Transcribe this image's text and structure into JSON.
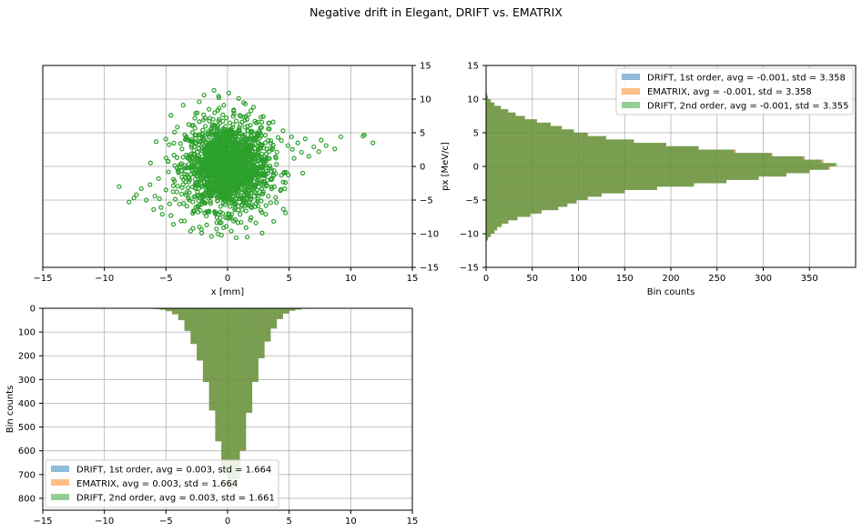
{
  "figure": {
    "title": "Negative drift in Elegant, DRIFT vs. EMATRIX"
  },
  "colors": {
    "series1": "#1f77b4",
    "series2": "#ff7f0e",
    "series3": "#2ca02c",
    "grid": "#b0b0b0"
  },
  "chart_data": [
    {
      "type": "scatter",
      "xlabel": "x [mm]",
      "ylabel": "px [MeV/c]",
      "xlim": [
        -15,
        15
      ],
      "ylim": [
        -15,
        15
      ],
      "xticks": [
        -15,
        -10,
        -5,
        0,
        5,
        10,
        15
      ],
      "yticks": [
        -15,
        -10,
        -5,
        0,
        5,
        10,
        15
      ],
      "yaxis_side": "right",
      "grid": true,
      "marker": "open circle",
      "points": [
        [
          -8.8,
          -3
        ],
        [
          -8.0,
          -5.3
        ],
        [
          -7.4,
          -4.2
        ],
        [
          -7.0,
          -3.3
        ],
        [
          -6.6,
          -5.0
        ],
        [
          -6.3,
          -2.7
        ],
        [
          -5.9,
          -4.4
        ],
        [
          -5.6,
          -1.8
        ],
        [
          -5.4,
          -6.1
        ],
        [
          -5.0,
          -3.5
        ],
        [
          -4.8,
          -0.8
        ],
        [
          -4.6,
          -7.3
        ],
        [
          -4.3,
          -2.2
        ],
        [
          -4.1,
          1.3
        ],
        [
          -3.9,
          -5.6
        ],
        [
          -3.7,
          2.6
        ],
        [
          -3.5,
          -8.1
        ],
        [
          -3.3,
          4.2
        ],
        [
          -3.1,
          -3.9
        ],
        [
          -2.9,
          6.1
        ],
        [
          -2.8,
          -9.2
        ],
        [
          -2.6,
          7.9
        ],
        [
          -2.4,
          -6.8
        ],
        [
          -2.3,
          9.6
        ],
        [
          -2.1,
          -9.9
        ],
        [
          -1.9,
          10.6
        ],
        [
          -1.7,
          -8.7
        ],
        [
          -1.5,
          8.5
        ],
        [
          -1.3,
          -10.4
        ],
        [
          -1.1,
          11.3
        ],
        [
          -0.9,
          -9.3
        ],
        [
          -0.7,
          10.2
        ],
        [
          -0.5,
          -10.2
        ],
        [
          -0.3,
          9.1
        ],
        [
          -0.1,
          -8.9
        ],
        [
          0.1,
          10.9
        ],
        [
          0.3,
          -9.6
        ],
        [
          0.5,
          8.4
        ],
        [
          0.7,
          -10.6
        ],
        [
          0.9,
          10.1
        ],
        [
          1.1,
          -8.3
        ],
        [
          1.3,
          9.5
        ],
        [
          1.5,
          -9.1
        ],
        [
          1.7,
          7.7
        ],
        [
          1.9,
          -7.6
        ],
        [
          2.1,
          8.8
        ],
        [
          2.3,
          -8.4
        ],
        [
          2.5,
          6.6
        ],
        [
          2.7,
          -6.5
        ],
        [
          2.9,
          7.4
        ],
        [
          3.1,
          -7.1
        ],
        [
          3.3,
          5.6
        ],
        [
          3.5,
          -5.4
        ],
        [
          3.7,
          6.6
        ],
        [
          3.9,
          -4.6
        ],
        [
          4.1,
          4.3
        ],
        [
          4.3,
          -3.6
        ],
        [
          4.5,
          5.3
        ],
        [
          4.7,
          -2.4
        ],
        [
          4.9,
          3.1
        ],
        [
          5.2,
          4.4
        ],
        [
          5.4,
          1.2
        ],
        [
          5.7,
          3.5
        ],
        [
          6.0,
          2.1
        ],
        [
          6.3,
          4.1
        ],
        [
          6.6,
          1.5
        ],
        [
          7.0,
          2.9
        ],
        [
          7.4,
          2.2
        ],
        [
          8.0,
          3.1
        ],
        [
          8.7,
          2.6
        ],
        [
          9.2,
          4.4
        ],
        [
          11.0,
          4.5
        ],
        [
          11.1,
          4.7
        ],
        [
          11.8,
          3.5
        ],
        [
          -7.6,
          -4.7
        ],
        [
          -6.0,
          -6.4
        ],
        [
          -5.3,
          -7.1
        ],
        [
          -4.4,
          -8.6
        ],
        [
          -3.0,
          -9.6
        ],
        [
          -3.6,
          9.1
        ],
        [
          -4.6,
          7.6
        ],
        [
          2.8,
          -9.9
        ],
        [
          1.6,
          -10.5
        ],
        [
          6.1,
          -1.0
        ],
        [
          7.6,
          3.9
        ],
        [
          -2.2,
          -0.2
        ],
        [
          -1.8,
          1.9
        ],
        [
          -1.4,
          -2.6
        ],
        [
          -1.0,
          3.4
        ],
        [
          -0.6,
          -1.2
        ],
        [
          -0.2,
          0.6
        ],
        [
          0.2,
          -3.3
        ],
        [
          0.6,
          2.7
        ],
        [
          1.0,
          -0.8
        ],
        [
          1.4,
          1.5
        ],
        [
          1.8,
          -2.1
        ],
        [
          2.2,
          3.9
        ],
        [
          2.6,
          -1.5
        ],
        [
          3.0,
          0.9
        ],
        [
          3.4,
          2.2
        ],
        [
          -2.4,
          -4.4
        ],
        [
          -1.6,
          4.9
        ],
        [
          -0.8,
          -5.1
        ],
        [
          0.4,
          5.8
        ],
        [
          1.2,
          -4.9
        ],
        [
          2.0,
          5.2
        ],
        [
          -3.2,
          -1.6
        ],
        [
          3.2,
          -2.8
        ],
        [
          -2.7,
          2.9
        ],
        [
          2.4,
          0.3
        ]
      ],
      "scatter_spread": {
        "x_std": 1.664,
        "px_std": 3.358,
        "x_range": [
          -8.8,
          11.8
        ],
        "px_range": [
          -10.6,
          11.3
        ]
      }
    },
    {
      "type": "bar",
      "orientation": "horizontal",
      "xlabel": "Bin counts",
      "ylabel": "",
      "xlim": [
        0,
        400
      ],
      "ylim": [
        -15,
        15
      ],
      "xticks": [
        0,
        50,
        100,
        150,
        200,
        250,
        300,
        350
      ],
      "yticks": [
        -15,
        -10,
        -5,
        0,
        5,
        10,
        15
      ],
      "grid": true,
      "legend_position": "top-right",
      "bin_edges": [
        -11.0,
        -10.5,
        -10.0,
        -9.5,
        -9.0,
        -8.5,
        -8.0,
        -7.5,
        -7.0,
        -6.5,
        -6.0,
        -5.5,
        -5.0,
        -4.5,
        -4.0,
        -3.5,
        -3.0,
        -2.5,
        -2.0,
        -1.5,
        -1.0,
        -0.5,
        0.0,
        0.5,
        1.0,
        1.5,
        2.0,
        2.5,
        3.0,
        3.5,
        4.0,
        4.5,
        5.0,
        5.5,
        6.0,
        6.5,
        7.0,
        7.5,
        8.0,
        8.5,
        9.0,
        9.5,
        10.0,
        10.5,
        11.0
      ],
      "series": [
        {
          "name": "DRIFT, 1st order, avg = -0.001, std = 3.358",
          "values": [
            2,
            5,
            9,
            12,
            17,
            24,
            34,
            48,
            60,
            78,
            88,
            98,
            110,
            125,
            150,
            185,
            225,
            260,
            295,
            325,
            350,
            372,
            378,
            365,
            345,
            310,
            270,
            230,
            195,
            160,
            130,
            110,
            95,
            82,
            70,
            55,
            42,
            32,
            24,
            16,
            9,
            5,
            2,
            1
          ]
        },
        {
          "name": "EMATRIX, avg = -0.001, std = 3.358",
          "values": [
            2,
            5,
            9,
            12,
            17,
            24,
            34,
            48,
            60,
            78,
            88,
            98,
            110,
            125,
            150,
            185,
            225,
            260,
            295,
            325,
            350,
            372,
            378,
            365,
            345,
            310,
            270,
            230,
            195,
            160,
            130,
            110,
            95,
            82,
            70,
            55,
            42,
            32,
            24,
            16,
            9,
            5,
            2,
            1
          ]
        },
        {
          "name": "DRIFT, 2nd order, avg = -0.001, std = 3.355",
          "values": [
            2,
            5,
            9,
            12,
            17,
            24,
            34,
            48,
            60,
            78,
            88,
            98,
            110,
            125,
            150,
            185,
            225,
            260,
            295,
            325,
            350,
            370,
            380,
            362,
            343,
            308,
            268,
            230,
            195,
            160,
            130,
            110,
            95,
            82,
            70,
            55,
            42,
            32,
            24,
            16,
            9,
            5,
            2,
            1
          ]
        }
      ]
    },
    {
      "type": "bar",
      "orientation": "vertical-inverted",
      "xlabel": "",
      "ylabel": "Bin counts",
      "xlim": [
        -15,
        15
      ],
      "ylim": [
        850,
        0
      ],
      "xticks": [
        -15,
        -10,
        -5,
        0,
        5,
        10,
        15
      ],
      "yticks": [
        0,
        100,
        200,
        300,
        400,
        500,
        600,
        700,
        800
      ],
      "grid": true,
      "legend_position": "bottom-left",
      "bin_edges": [
        -7.0,
        -6.0,
        -5.5,
        -5.0,
        -4.5,
        -4.0,
        -3.5,
        -3.0,
        -2.5,
        -2.0,
        -1.5,
        -1.0,
        -0.5,
        0.0,
        0.5,
        1.0,
        1.5,
        2.0,
        2.5,
        3.0,
        3.5,
        4.0,
        4.5,
        5.0,
        5.5,
        6.0,
        7.0,
        8.0
      ],
      "series": [
        {
          "name": "DRIFT, 1st order, avg = 0.003, std = 1.664",
          "values": [
            1,
            3,
            6,
            12,
            25,
            50,
            95,
            150,
            220,
            310,
            430,
            560,
            690,
            760,
            720,
            600,
            440,
            310,
            210,
            140,
            85,
            45,
            22,
            10,
            5,
            2,
            1
          ]
        },
        {
          "name": "EMATRIX, avg = 0.003, std = 1.664",
          "values": [
            1,
            3,
            6,
            12,
            25,
            50,
            95,
            150,
            220,
            310,
            430,
            560,
            690,
            760,
            720,
            600,
            440,
            310,
            210,
            140,
            85,
            45,
            22,
            10,
            5,
            2,
            1
          ]
        },
        {
          "name": "DRIFT, 2nd order, avg = 0.003, std = 1.661",
          "values": [
            1,
            3,
            6,
            12,
            25,
            50,
            95,
            150,
            220,
            310,
            430,
            560,
            692,
            762,
            718,
            598,
            440,
            310,
            210,
            140,
            85,
            45,
            22,
            10,
            5,
            2,
            1
          ]
        }
      ]
    }
  ]
}
